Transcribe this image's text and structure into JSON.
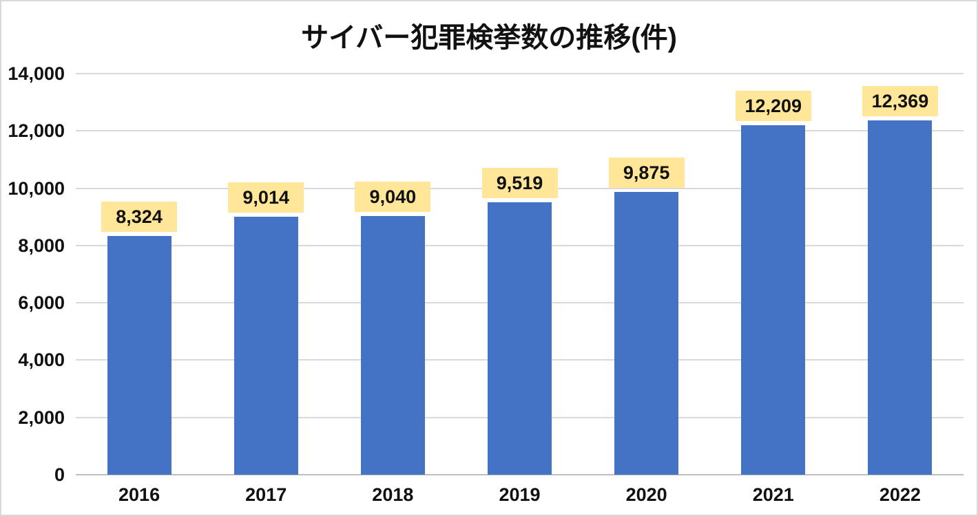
{
  "chart_data": {
    "type": "bar",
    "title": "サイバー犯罪検挙数の推移(件)",
    "categories": [
      "2016",
      "2017",
      "2018",
      "2019",
      "2020",
      "2021",
      "2022"
    ],
    "values": [
      8324,
      9014,
      9040,
      9519,
      9875,
      12209,
      12369
    ],
    "value_labels": [
      "8,324",
      "9,014",
      "9,040",
      "9,519",
      "9,875",
      "12,209",
      "12,369"
    ],
    "xlabel": "",
    "ylabel": "",
    "ylim": [
      0,
      14000
    ],
    "y_ticks": [
      {
        "value": 0,
        "label": "0"
      },
      {
        "value": 2000,
        "label": "2,000"
      },
      {
        "value": 4000,
        "label": "4,000"
      },
      {
        "value": 6000,
        "label": "6,000"
      },
      {
        "value": 8000,
        "label": "8,000"
      },
      {
        "value": 10000,
        "label": "10,000"
      },
      {
        "value": 12000,
        "label": "12,000"
      },
      {
        "value": 14000,
        "label": "14,000"
      }
    ],
    "grid": "horizontal",
    "legend_position": "none",
    "colors": {
      "bar": "#4472C4",
      "value_label_bg": "#FFE699",
      "value_label_text": "#111111",
      "gridline": "#D9D9D9",
      "axis_line": "#BFBFBF",
      "text": "#111111",
      "background": "#FFFFFF",
      "frame_border": "#D9D9D9"
    }
  }
}
